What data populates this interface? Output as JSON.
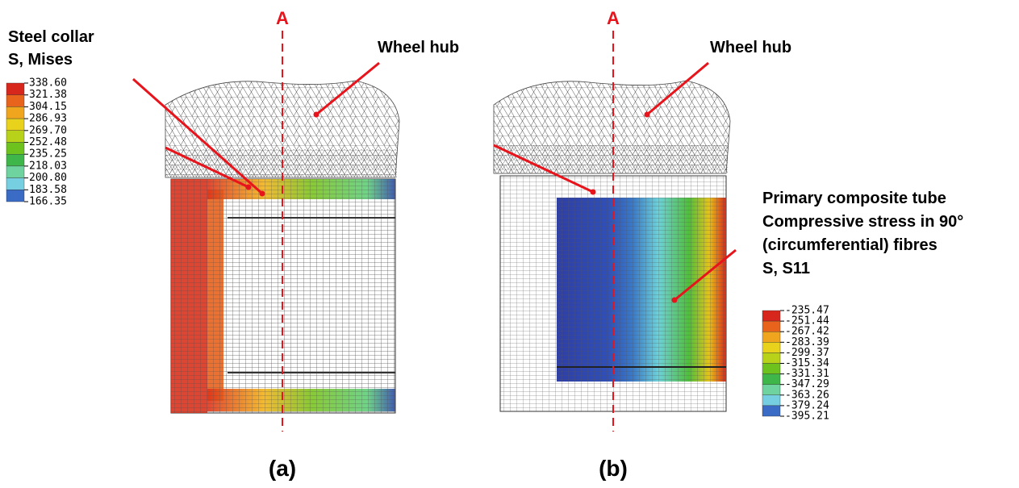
{
  "panel_a": {
    "section_label": "A",
    "collar_title": "Steel collar",
    "collar_subtitle": "S, Mises",
    "hub_label": "Wheel hub",
    "legend": [
      "338.60",
      "321.38",
      "304.15",
      "286.93",
      "269.70",
      "252.48",
      "235.25",
      "218.03",
      "200.80",
      "183.58",
      "166.35"
    ],
    "caption": "(a)"
  },
  "panel_b": {
    "section_label": "A",
    "hub_label": "Wheel hub",
    "tube_lines": [
      "Primary composite tube",
      "Compressive stress in 90°",
      "(circumferential) fibres",
      "S, S11"
    ],
    "legend": [
      "-235.47",
      "-251.44",
      "-267.42",
      "-283.39",
      "-299.37",
      "-315.34",
      "-331.31",
      "-347.29",
      "-363.26",
      "-379.24",
      "-395.21"
    ],
    "caption": "(b)"
  }
}
